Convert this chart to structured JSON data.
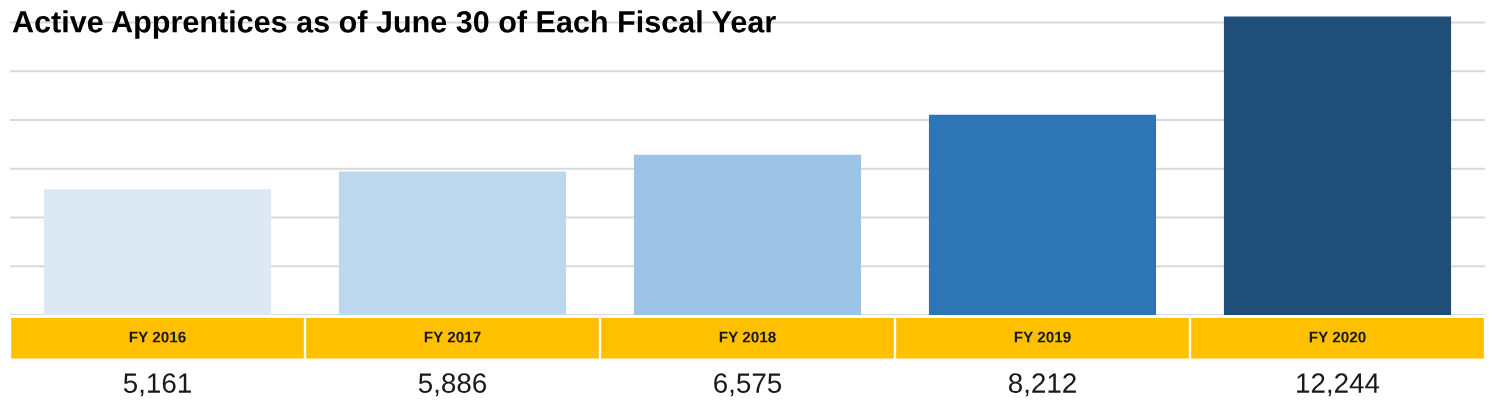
{
  "chart_data": {
    "type": "bar",
    "title": "Active Apprentices as of June 30 of Each Fiscal Year",
    "categories": [
      "FY 2016",
      "FY 2017",
      "FY 2018",
      "FY 2019",
      "FY 2020"
    ],
    "values": [
      5161,
      5886,
      6575,
      8212,
      12244
    ],
    "value_labels": [
      "5,161",
      "5,886",
      "6,575",
      "8,212",
      "12,244"
    ],
    "colors": [
      "#dde8f5",
      "#bdd7ee",
      "#9dc3e6",
      "#2e75b6",
      "#1f4e79"
    ],
    "grid": "y"
  }
}
